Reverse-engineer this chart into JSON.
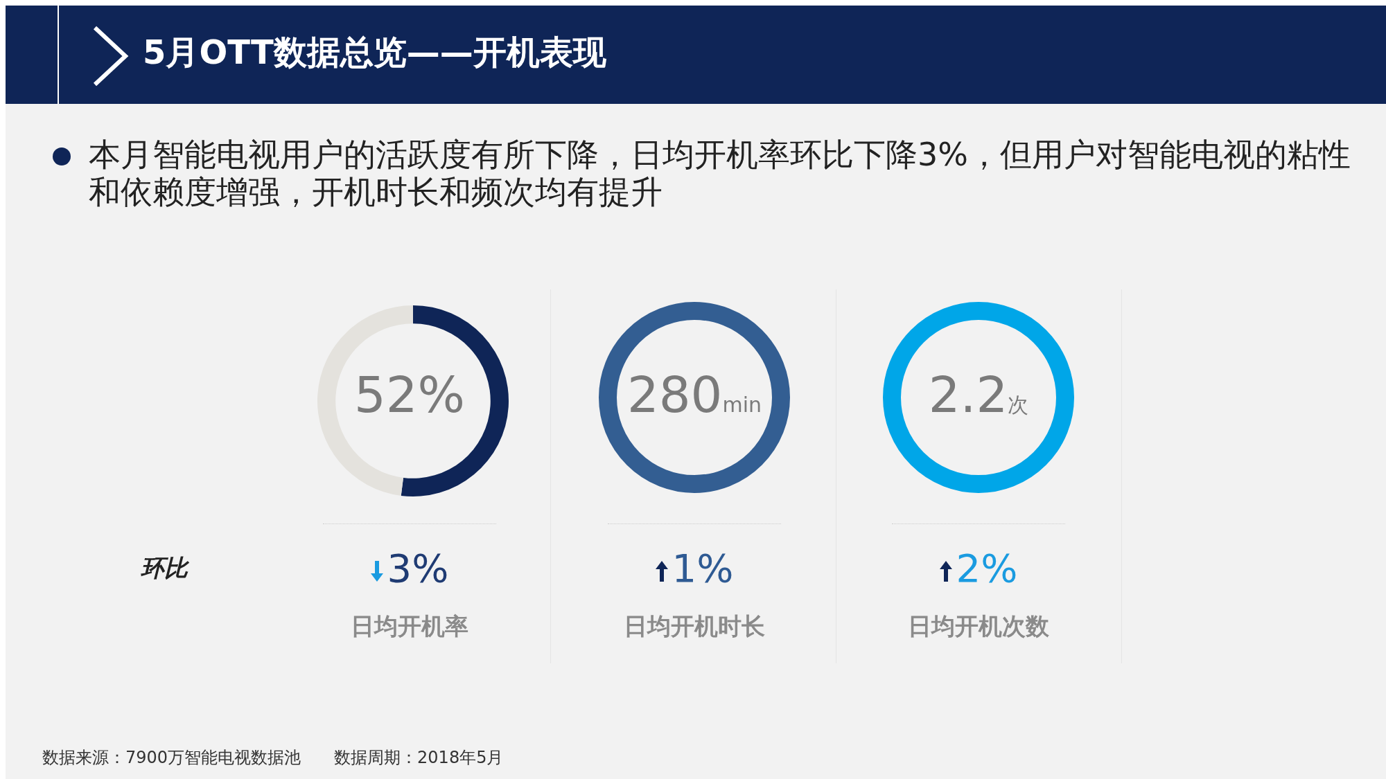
{
  "chart_data": [
    {
      "type": "donut",
      "title": "5月OTT数据总览——开机表现",
      "subtitle": "本月智能电视用户的活跃度有所下降，日均开机率环比下降3%，但用户对智能电视的粘性和依赖度增强，开机时长和频次均有提升",
      "xlabel": "日均开机率",
      "categories": [
        null,
        null
      ],
      "values": [
        52,
        48
      ],
      "colors": [
        "#0f2557",
        "#e4e2dd"
      ],
      "annotations": [
        "52%",
        "3%",
        "环比",
        "数据来源：7900万智能电视数据池　　数据周期：2018年5月"
      ]
    },
    {
      "type": "other",
      "xlabel": "日均开机时长",
      "annotations": [
        "280min",
        "1%"
      ]
    },
    {
      "type": "other",
      "xlabel": "日均开机次数",
      "annotations": [
        "2.2次",
        "2%"
      ]
    }
  ]
}
